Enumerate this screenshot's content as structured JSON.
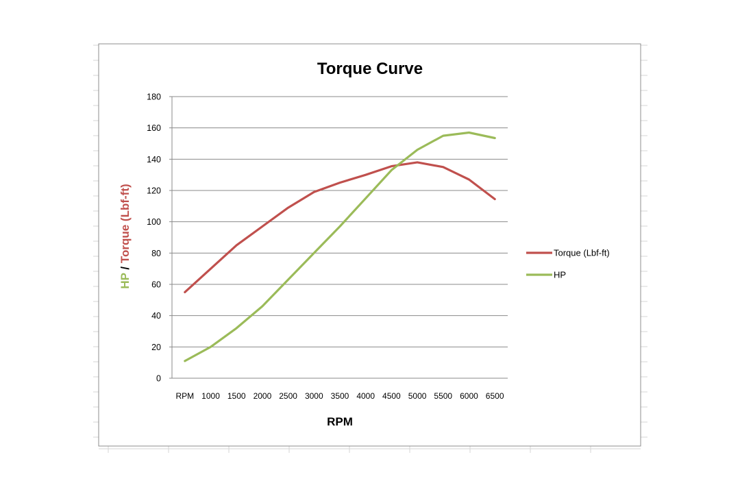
{
  "chart_data": {
    "type": "line",
    "title": "Torque Curve",
    "xlabel": "RPM",
    "ylabel_parts": [
      {
        "text": "HP",
        "color": "#9bbb59"
      },
      {
        "text": " / ",
        "color": "#000000"
      },
      {
        "text": "Torque (Lbf-ft)",
        "color": "#c0504d"
      }
    ],
    "categories": [
      "RPM",
      "1000",
      "1500",
      "2000",
      "2500",
      "3000",
      "3500",
      "4000",
      "4500",
      "5000",
      "5500",
      "6000",
      "6500"
    ],
    "ylim": [
      0,
      180
    ],
    "yticks": [
      0,
      20,
      40,
      60,
      80,
      100,
      120,
      140,
      160,
      180
    ],
    "grid": true,
    "legend_position": "right",
    "series": [
      {
        "name": "Torque (Lbf-ft)",
        "color": "#c0504d",
        "values": [
          55,
          70,
          85,
          97,
          109,
          119,
          125,
          130,
          135.5,
          138,
          135,
          127,
          114.5
        ]
      },
      {
        "name": "HP",
        "color": "#9bbb59",
        "values": [
          11,
          20,
          32,
          46,
          63,
          80,
          97,
          115,
          133,
          146,
          155,
          157,
          153.5
        ]
      }
    ]
  }
}
